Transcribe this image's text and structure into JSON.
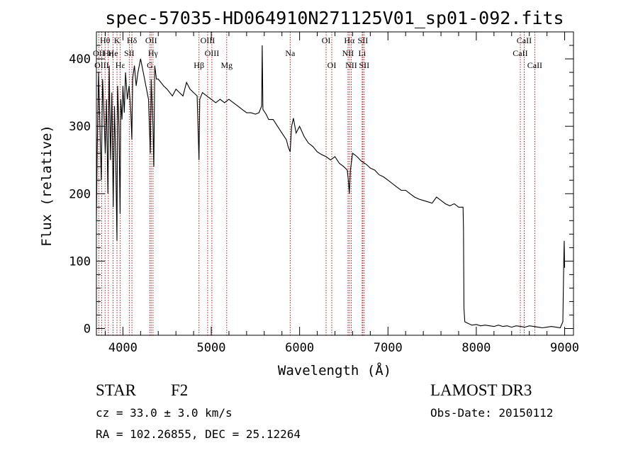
{
  "chart_data": {
    "type": "line",
    "title": "spec-57035-HD064910N271125V01_sp01-092.fits",
    "xlabel": "Wavelength (Å)",
    "ylabel": "Flux (relative)",
    "xlim": [
      3700,
      9100
    ],
    "ylim": [
      -10,
      440
    ],
    "x_ticks": [
      4000,
      5000,
      6000,
      7000,
      8000,
      9000
    ],
    "y_ticks": [
      0,
      100,
      200,
      300,
      400
    ],
    "x_tick_labels": [
      "4000",
      "5000",
      "6000",
      "7000",
      "8000",
      "9000"
    ],
    "y_tick_labels": [
      "0",
      "100",
      "200",
      "300",
      "400"
    ],
    "grid": false,
    "series": [
      {
        "name": "flux",
        "x": [
          3700,
          3710,
          3725,
          3740,
          3755,
          3770,
          3785,
          3800,
          3815,
          3830,
          3845,
          3860,
          3875,
          3890,
          3905,
          3920,
          3933,
          3940,
          3955,
          3968,
          3975,
          3990,
          4000,
          4015,
          4030,
          4050,
          4070,
          4090,
          4101,
          4110,
          4130,
          4150,
          4170,
          4200,
          4230,
          4260,
          4290,
          4310,
          4320,
          4340,
          4350,
          4360,
          4380,
          4400,
          4430,
          4460,
          4500,
          4530,
          4560,
          4600,
          4640,
          4680,
          4720,
          4760,
          4800,
          4840,
          4861,
          4870,
          4900,
          4950,
          5000,
          5050,
          5100,
          5150,
          5200,
          5250,
          5300,
          5350,
          5400,
          5450,
          5500,
          5540,
          5570,
          5577,
          5585,
          5620,
          5650,
          5700,
          5750,
          5800,
          5850,
          5870,
          5893,
          5910,
          5930,
          5960,
          6000,
          6050,
          6100,
          6150,
          6200,
          6250,
          6300,
          6350,
          6400,
          6450,
          6500,
          6540,
          6555,
          6563,
          6575,
          6600,
          6650,
          6700,
          6750,
          6800,
          6850,
          6900,
          6950,
          7000,
          7050,
          7100,
          7150,
          7200,
          7250,
          7300,
          7350,
          7400,
          7450,
          7500,
          7550,
          7600,
          7650,
          7700,
          7750,
          7800,
          7840,
          7850,
          7855,
          7860,
          7870,
          7900,
          7950,
          8000,
          8050,
          8100,
          8150,
          8200,
          8250,
          8300,
          8350,
          8400,
          8450,
          8500,
          8550,
          8600,
          8650,
          8700,
          8750,
          8800,
          8850,
          8900,
          8950,
          8980,
          8990,
          8995,
          9000
        ],
        "y": [
          160,
          270,
          380,
          300,
          220,
          370,
          320,
          260,
          340,
          200,
          390,
          250,
          350,
          180,
          330,
          240,
          130,
          360,
          300,
          170,
          340,
          310,
          360,
          320,
          380,
          340,
          360,
          320,
          280,
          370,
          390,
          360,
          380,
          400,
          380,
          360,
          340,
          260,
          370,
          300,
          240,
          390,
          370,
          370,
          365,
          360,
          355,
          350,
          345,
          355,
          350,
          345,
          365,
          355,
          350,
          345,
          250,
          340,
          350,
          345,
          340,
          335,
          340,
          335,
          340,
          335,
          330,
          325,
          320,
          320,
          318,
          320,
          330,
          420,
          325,
          318,
          310,
          310,
          300,
          290,
          280,
          270,
          262,
          300,
          312,
          290,
          300,
          285,
          275,
          270,
          262,
          258,
          255,
          250,
          255,
          245,
          240,
          235,
          215,
          200,
          235,
          260,
          255,
          248,
          244,
          238,
          235,
          228,
          225,
          220,
          215,
          210,
          205,
          205,
          200,
          195,
          192,
          190,
          188,
          186,
          195,
          190,
          185,
          182,
          185,
          180,
          180,
          180,
          150,
          30,
          10,
          8,
          5,
          6,
          4,
          5,
          4,
          3,
          5,
          3,
          4,
          2,
          4,
          3,
          2,
          4,
          3,
          2,
          1,
          2,
          3,
          2,
          1,
          10,
          100,
          130,
          90
        ]
      }
    ],
    "spectral_lines": [
      {
        "label": "Hθ",
        "x": 3798,
        "row": 0
      },
      {
        "label": "K",
        "x": 3933,
        "row": 0
      },
      {
        "label": "Hδ",
        "x": 4102,
        "row": 0
      },
      {
        "label": "OII",
        "x": 4320,
        "row": 0
      },
      {
        "label": "OIII",
        "x": 4959,
        "row": 0
      },
      {
        "label": "OI",
        "x": 6300,
        "row": 0
      },
      {
        "label": "Hα",
        "x": 6563,
        "row": 0
      },
      {
        "label": "SII",
        "x": 6716,
        "row": 0
      },
      {
        "label": "CaII",
        "x": 8542,
        "row": 0
      },
      {
        "label": "OII",
        "x": 3727,
        "row": 1
      },
      {
        "label": "He",
        "x": 3889,
        "row": 1
      },
      {
        "label": "SII",
        "x": 4072,
        "row": 1
      },
      {
        "label": "Hγ",
        "x": 4341,
        "row": 1
      },
      {
        "label": "OIII",
        "x": 5007,
        "row": 1
      },
      {
        "label": "Na",
        "x": 5893,
        "row": 1
      },
      {
        "label": "NII",
        "x": 6548,
        "row": 1
      },
      {
        "label": "Li",
        "x": 6708,
        "row": 1
      },
      {
        "label": "CaII",
        "x": 8498,
        "row": 1
      },
      {
        "label": "Hη",
        "x": 3835,
        "row": 1
      },
      {
        "label": "Hε",
        "x": 3970,
        "row": 2
      },
      {
        "label": "OIII",
        "x": 3760,
        "row": 2
      },
      {
        "label": "G",
        "x": 4305,
        "row": 2
      },
      {
        "label": "Hβ",
        "x": 4861,
        "row": 2
      },
      {
        "label": "Mg",
        "x": 5175,
        "row": 2
      },
      {
        "label": "OI",
        "x": 6364,
        "row": 2
      },
      {
        "label": "NII",
        "x": 6584,
        "row": 2
      },
      {
        "label": "SII",
        "x": 6731,
        "row": 2
      },
      {
        "label": "CaII",
        "x": 8662,
        "row": 2
      }
    ],
    "line_color": "#000000",
    "marker_color": "#b00000"
  },
  "info": {
    "class_label": "STAR",
    "subclass": "F2",
    "survey": "LAMOST DR3",
    "redshift": "cz = 33.0 ± 3.0 km/s",
    "obs_date": "Obs-Date: 20150112",
    "coords": "RA = 102.26855, DEC =  25.12264"
  }
}
